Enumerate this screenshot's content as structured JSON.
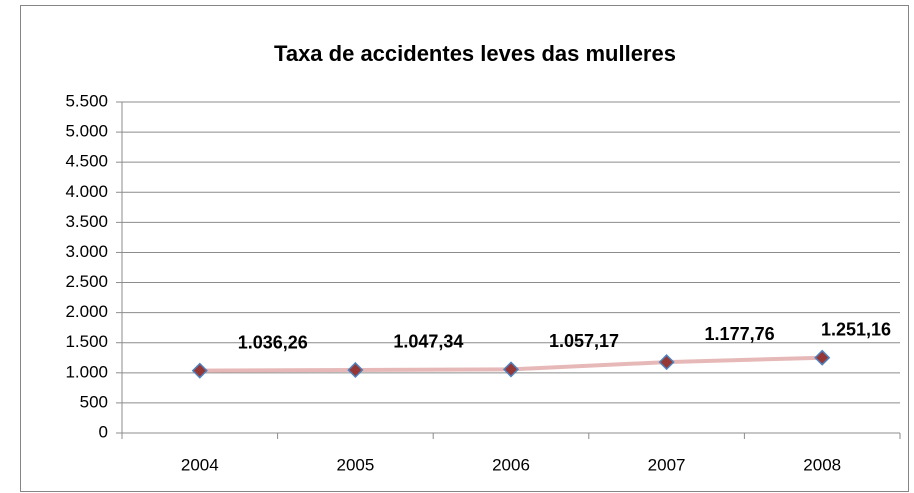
{
  "chart_data": {
    "type": "line",
    "title": "Taxa de accidentes leves das mulleres",
    "categories": [
      "2004",
      "2005",
      "2006",
      "2007",
      "2008"
    ],
    "series": [
      {
        "name": "Taxa de accidentes leves das mulleres",
        "color": "#e6b9b8",
        "marker_color": "#953735",
        "marker_edge": "#4f81bd",
        "values": [
          1036.26,
          1047.34,
          1057.17,
          1177.76,
          1251.16
        ],
        "value_labels": [
          "1.036,26",
          "1.047,34",
          "1.057,17",
          "1.177,76",
          "1.251,16"
        ]
      }
    ],
    "ylim": [
      0,
      5500
    ],
    "yticks": [
      0,
      500,
      {
        "value": 1000,
        "label": "1.000"
      },
      {
        "value": 1500,
        "label": "1.500"
      },
      {
        "value": 2000,
        "label": "2.000"
      },
      {
        "value": 2500,
        "label": "2.500"
      },
      {
        "value": 3000,
        "label": "3.000"
      },
      {
        "value": 3500,
        "label": "3.500"
      },
      {
        "value": 4000,
        "label": "4.000"
      },
      {
        "value": 4500,
        "label": "4.500"
      },
      {
        "value": 5000,
        "label": "5.000"
      },
      {
        "value": 5500,
        "label": "5.500"
      }
    ],
    "grid": true
  }
}
